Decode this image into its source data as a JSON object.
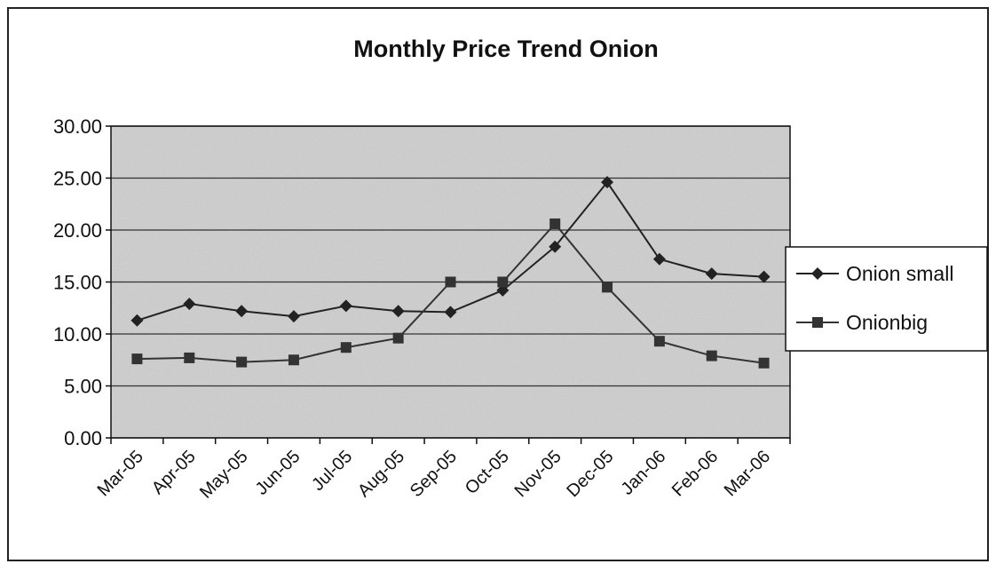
{
  "chart_data": {
    "type": "line",
    "title": "Monthly Price Trend Onion",
    "categories": [
      "Mar-05",
      "Apr-05",
      "May-05",
      "Jun-05",
      "Jul-05",
      "Aug-05",
      "Sep-05",
      "Oct-05",
      "Nov-05",
      "Dec-05",
      "Jan-06",
      "Feb-06",
      "Mar-06"
    ],
    "series": [
      {
        "name": "Onion small",
        "color": "#222222",
        "marker": "diamond",
        "values": [
          11.3,
          12.9,
          12.2,
          11.7,
          12.7,
          12.2,
          12.1,
          14.2,
          18.4,
          24.6,
          17.2,
          15.8,
          15.5
        ]
      },
      {
        "name": "Onionbig",
        "color": "#333333",
        "marker": "square",
        "values": [
          7.6,
          7.7,
          7.3,
          7.5,
          8.7,
          9.6,
          15.0,
          15.0,
          20.6,
          14.5,
          9.3,
          7.9,
          7.2
        ]
      }
    ],
    "ylim": [
      0,
      30
    ],
    "yticks": [
      {
        "value": 0,
        "label": "0.00"
      },
      {
        "value": 5,
        "label": "5.00"
      },
      {
        "value": 10,
        "label": "10.00"
      },
      {
        "value": 15,
        "label": "15.00"
      },
      {
        "value": 20,
        "label": "20.00"
      },
      {
        "value": 25,
        "label": "25.00"
      },
      {
        "value": 30,
        "label": "30.00"
      }
    ],
    "grid": true,
    "legend": "right"
  }
}
